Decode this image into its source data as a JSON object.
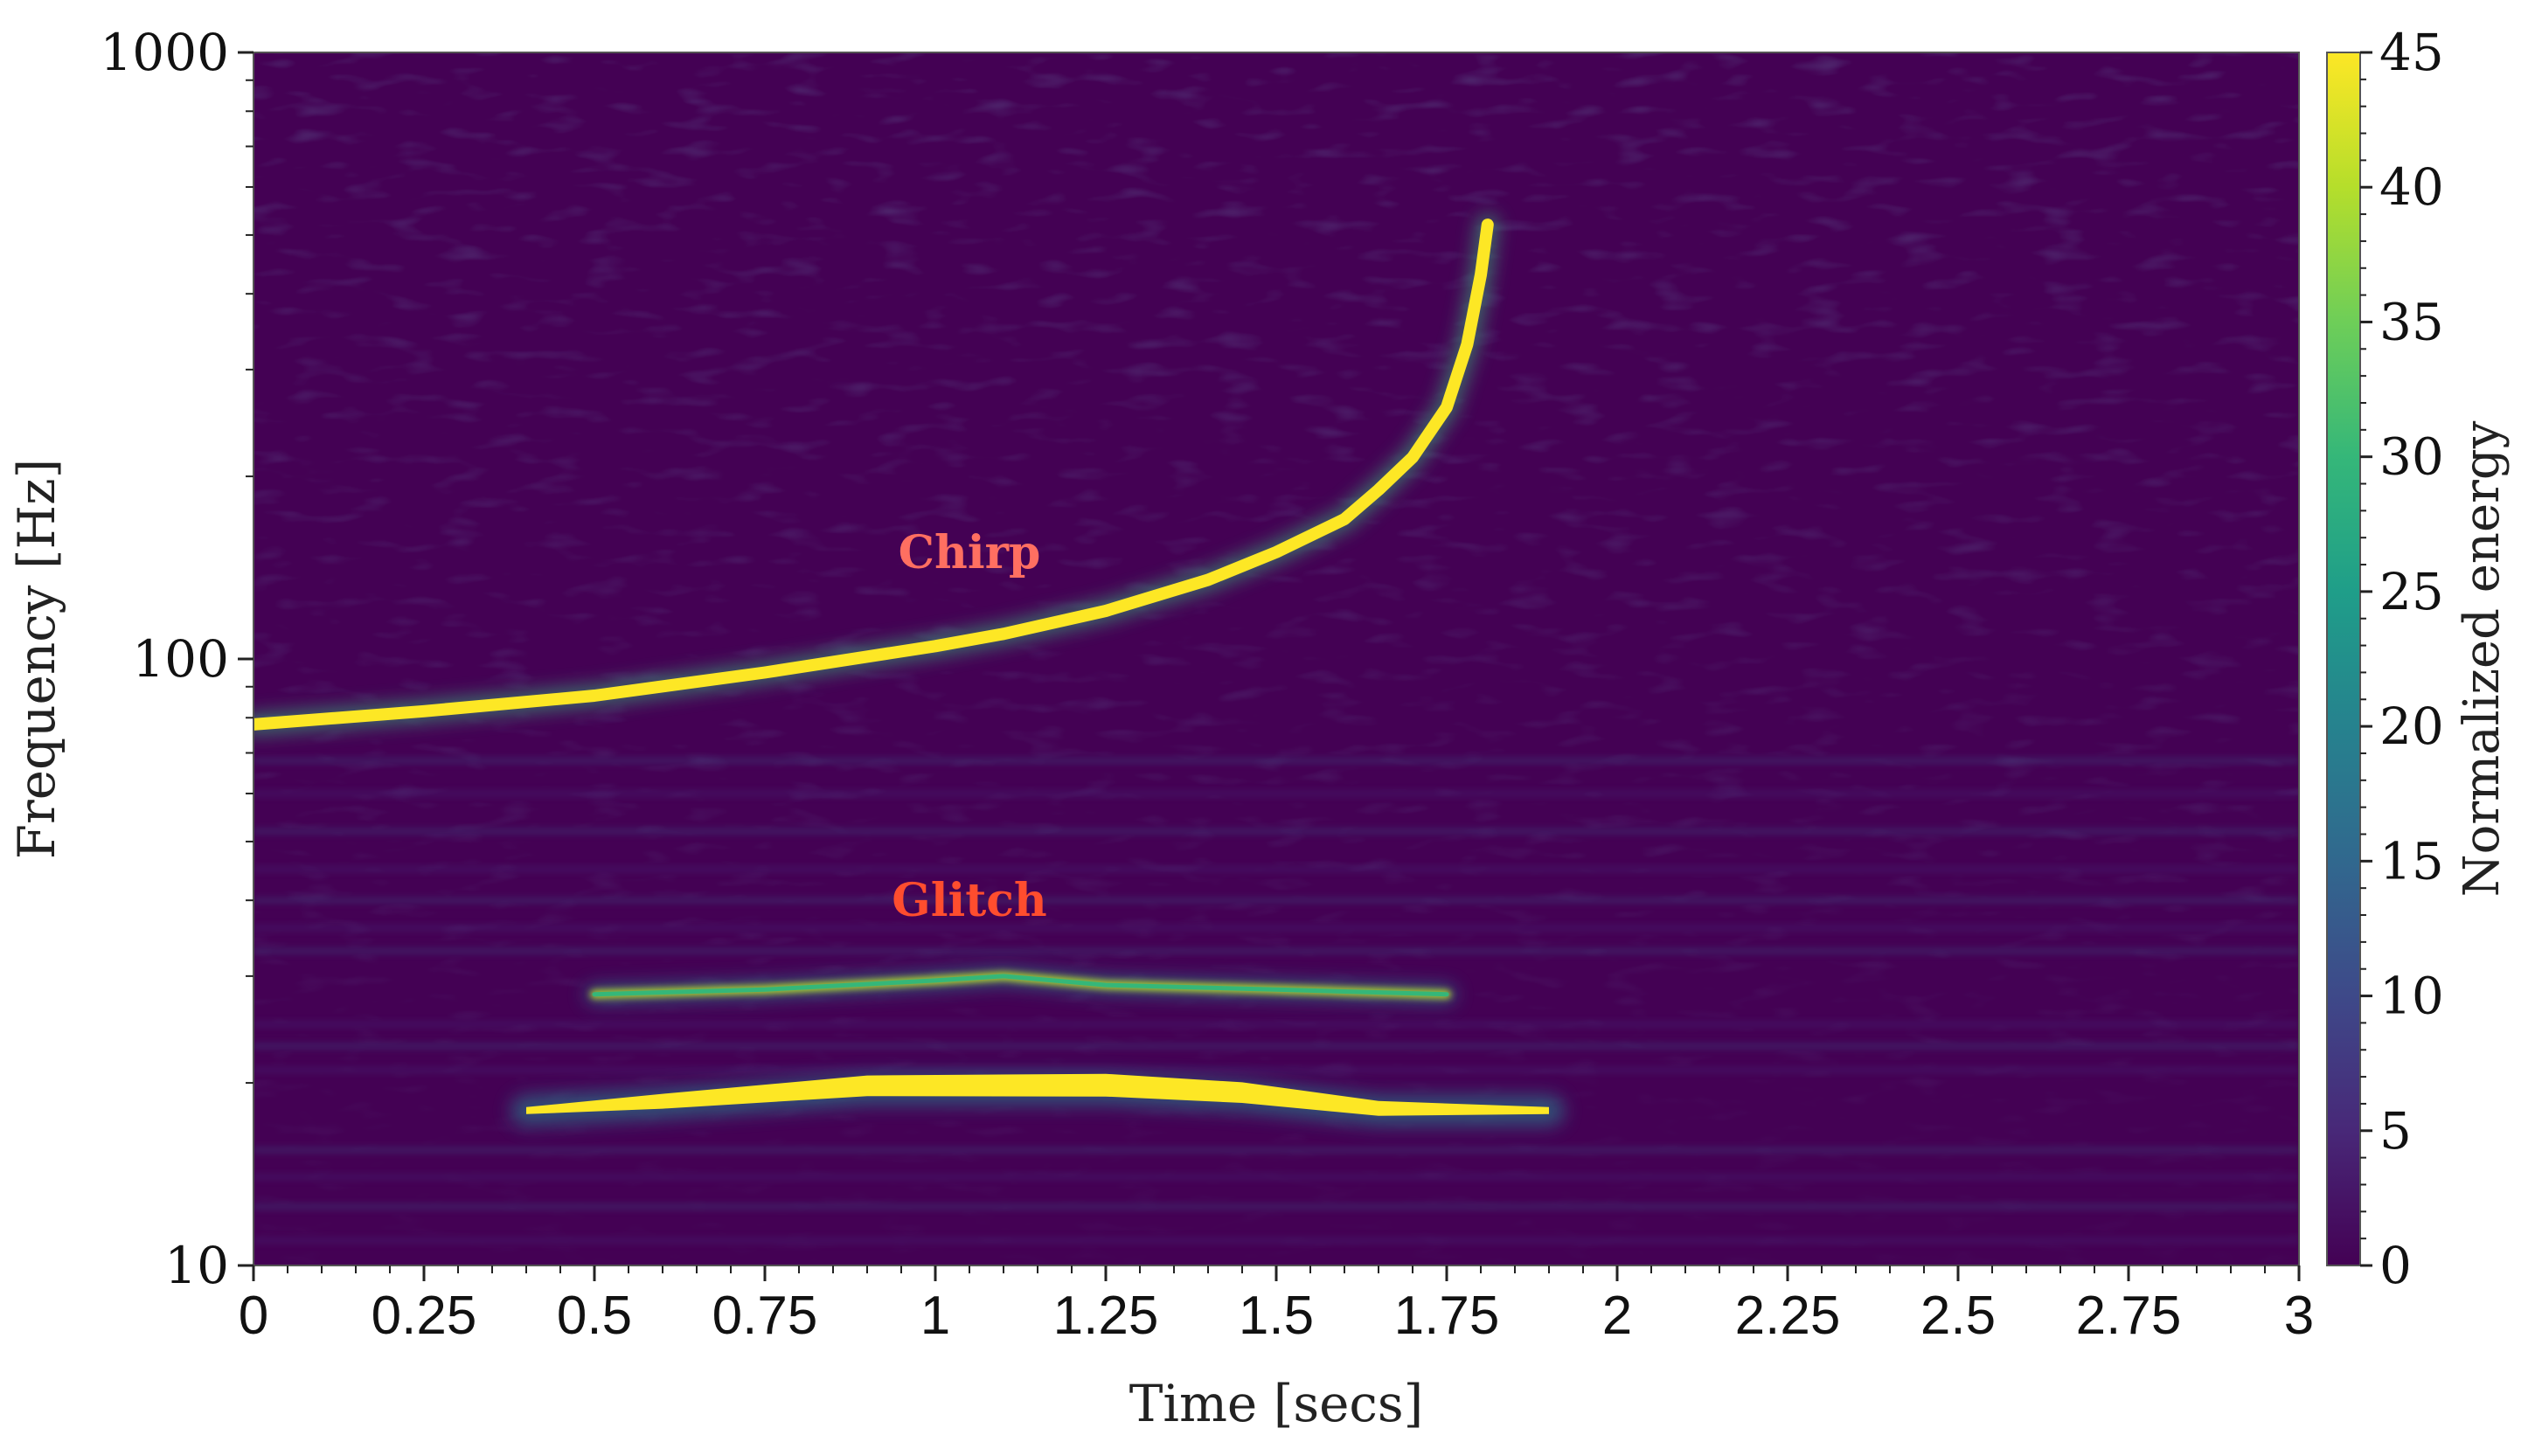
{
  "chart_data": {
    "type": "heatmap",
    "title": "",
    "xlabel": "Time [secs]",
    "ylabel": "Frequency [Hz]",
    "colorbar_label": "Normalized energy",
    "colormap": "viridis",
    "colormap_stops": [
      "#440154",
      "#482878",
      "#3e4989",
      "#31688e",
      "#26828e",
      "#1f9e89",
      "#35b779",
      "#6ece58",
      "#b5de2b",
      "#fde725"
    ],
    "background_color": "#440154",
    "xlim": [
      0,
      3
    ],
    "ylim": [
      10,
      1000
    ],
    "yscale": "log",
    "clim": [
      0,
      45
    ],
    "xticks": [
      0,
      0.25,
      0.5,
      0.75,
      1,
      1.25,
      1.5,
      1.75,
      2,
      2.25,
      2.5,
      2.75,
      3
    ],
    "xtick_labels": [
      "0",
      "0.25",
      "0.5",
      "0.75",
      "1",
      "1.25",
      "1.5",
      "1.75",
      "2",
      "2.25",
      "2.5",
      "2.75",
      "3"
    ],
    "yticks": [
      10,
      100,
      1000
    ],
    "ytick_labels": [
      "10",
      "100",
      "1000"
    ],
    "cbar_ticks": [
      0,
      5,
      10,
      15,
      20,
      25,
      30,
      35,
      40,
      45
    ],
    "cbar_tick_labels": [
      "0",
      "5",
      "10",
      "15",
      "20",
      "25",
      "30",
      "35",
      "40",
      "45"
    ],
    "grid": false,
    "features": [
      {
        "name": "chirp",
        "kind": "track",
        "energy": 45,
        "points": [
          [
            0,
            78
          ],
          [
            0.25,
            82
          ],
          [
            0.5,
            87
          ],
          [
            0.75,
            95
          ],
          [
            1,
            105
          ],
          [
            1.1,
            110
          ],
          [
            1.25,
            120
          ],
          [
            1.4,
            135
          ],
          [
            1.5,
            150
          ],
          [
            1.6,
            170
          ],
          [
            1.65,
            190
          ],
          [
            1.7,
            215
          ],
          [
            1.75,
            260
          ],
          [
            1.78,
            330
          ],
          [
            1.8,
            430
          ],
          [
            1.81,
            520
          ]
        ]
      },
      {
        "name": "glitch-upper",
        "kind": "band",
        "energy": 30,
        "points": [
          [
            0.5,
            28
          ],
          [
            0.75,
            28.5
          ],
          [
            1,
            29.5
          ],
          [
            1.1,
            30
          ],
          [
            1.25,
            29
          ],
          [
            1.5,
            28.5
          ],
          [
            1.75,
            28
          ]
        ]
      },
      {
        "name": "glitch-lower",
        "kind": "band",
        "energy": 45,
        "points": [
          [
            0.4,
            18
          ],
          [
            0.6,
            18.5
          ],
          [
            0.9,
            19.5
          ],
          [
            1.25,
            19.5
          ],
          [
            1.45,
            19
          ],
          [
            1.65,
            18
          ],
          [
            1.9,
            18
          ]
        ]
      }
    ],
    "annotations": [
      {
        "text": "Chirp",
        "x": 1.05,
        "y": 150,
        "color": "#ff6f61"
      },
      {
        "text": "Glitch",
        "x": 1.05,
        "y": 40,
        "color": "#ff4d2e"
      }
    ]
  }
}
